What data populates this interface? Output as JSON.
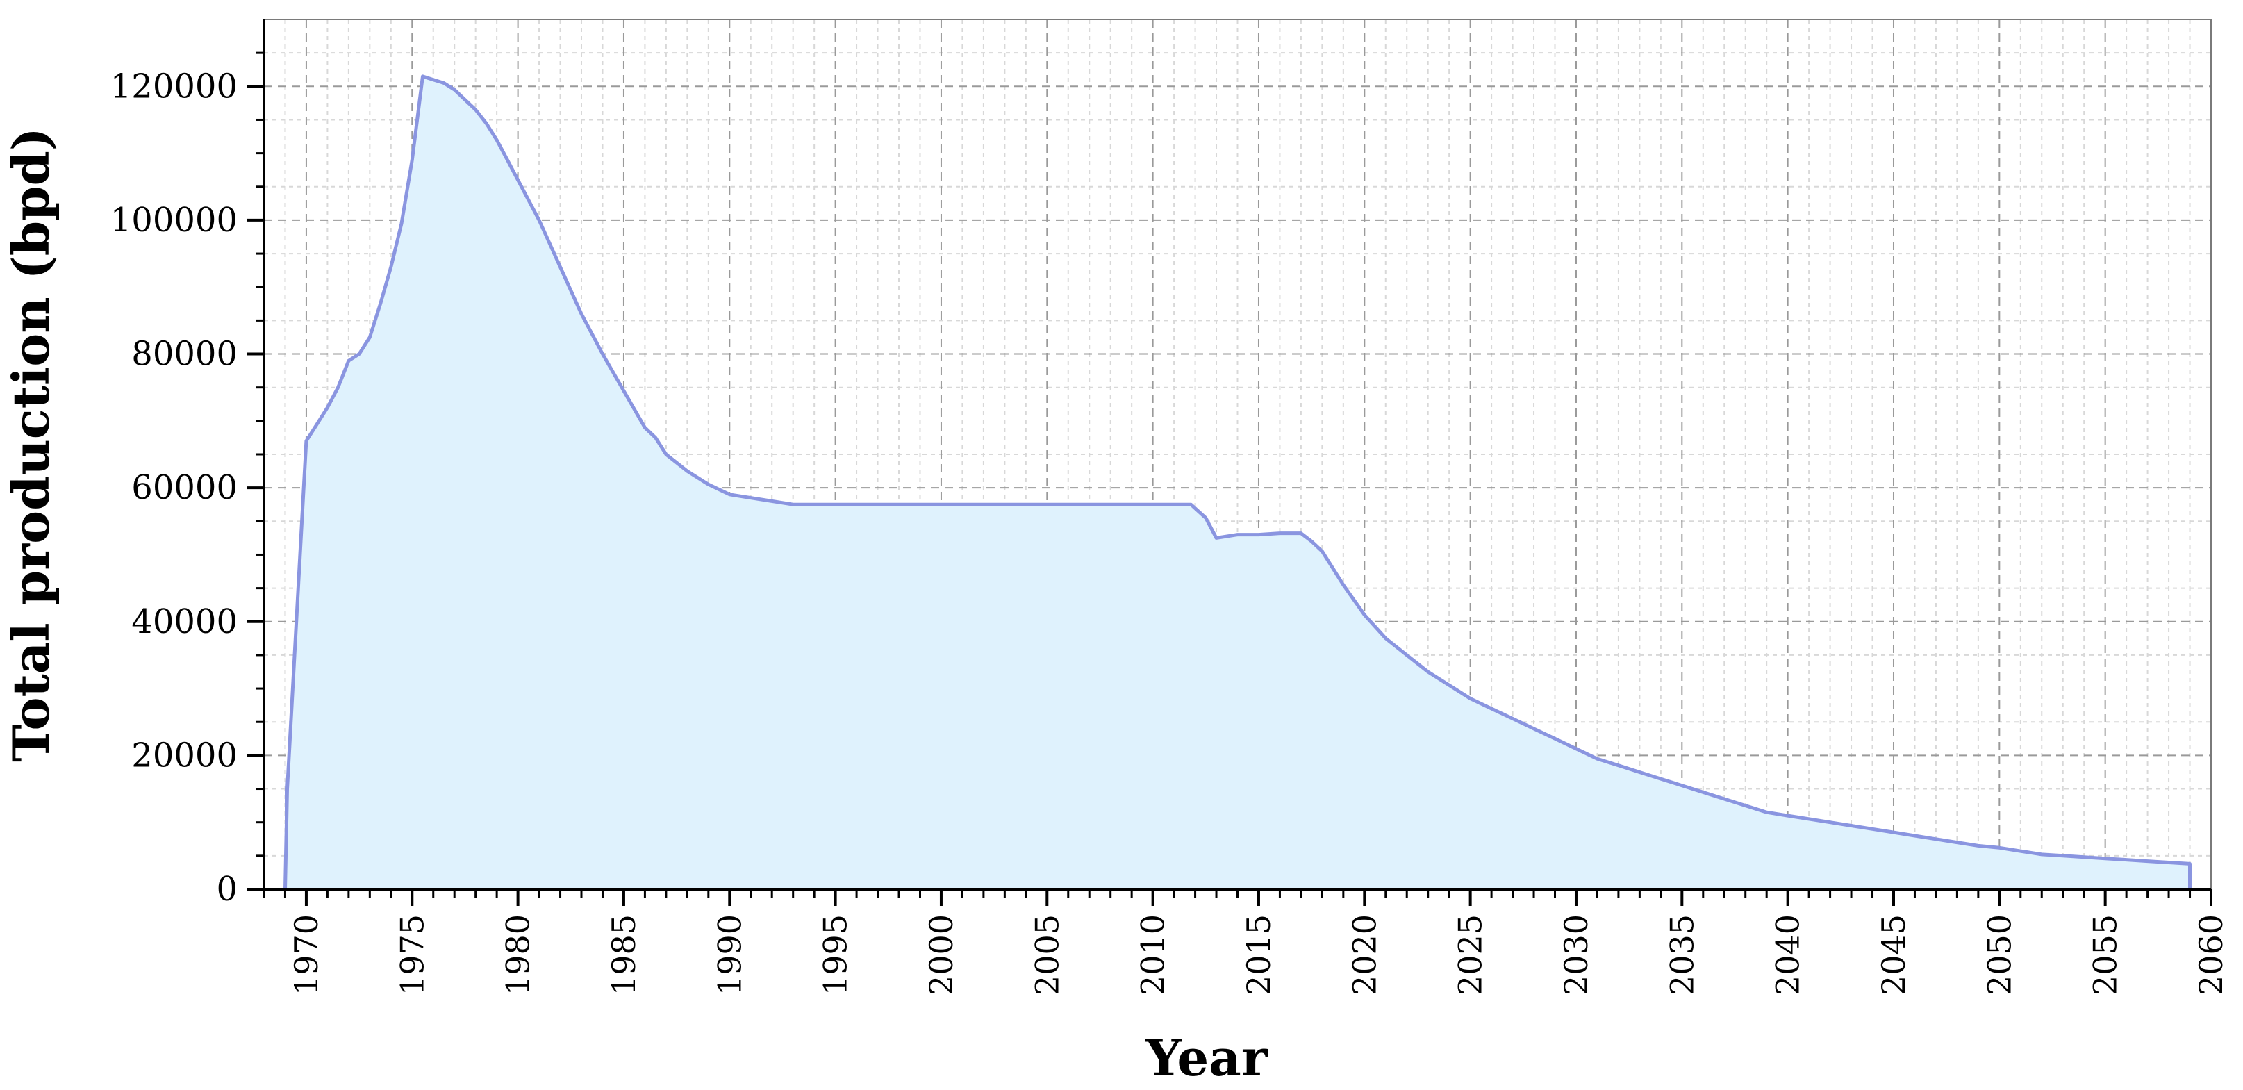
{
  "chart_data": {
    "type": "area",
    "title": "",
    "xlabel": "Year",
    "ylabel": "Total production (bpd)",
    "xlim": [
      1968,
      2060
    ],
    "ylim": [
      0,
      130000
    ],
    "x_ticks": [
      1970,
      1975,
      1980,
      1985,
      1990,
      1995,
      2000,
      2005,
      2010,
      2015,
      2020,
      2025,
      2030,
      2035,
      2040,
      2045,
      2050,
      2055,
      2060
    ],
    "y_ticks": [
      0,
      20000,
      40000,
      60000,
      80000,
      100000,
      120000
    ],
    "grid": true,
    "legend": "none",
    "colors": {
      "line": "#8a95e0",
      "fill": "#dff2fd",
      "major_grid": "#9a9a9a",
      "minor_grid": "#d8d8d8",
      "axis": "#000000"
    },
    "series": [
      {
        "x": [
          1969,
          1969.1,
          1970,
          1970.5,
          1971,
          1971.5,
          1972,
          1972.5,
          1973,
          1973.5,
          1974,
          1974.5,
          1975,
          1975.5,
          1976,
          1976.5,
          1977,
          1977.5,
          1978,
          1978.5,
          1979,
          1979.5,
          1980,
          1981,
          1982,
          1983,
          1984,
          1985,
          1986,
          1986.5,
          1987,
          1988,
          1989,
          1990,
          1991,
          1992,
          1993,
          1995,
          2000,
          2005,
          2010,
          2011,
          2011.8,
          2012.5,
          2013,
          2014,
          2015,
          2016,
          2017,
          2017.5,
          2018,
          2018.5,
          2019,
          2020,
          2021,
          2022,
          2023,
          2024,
          2025,
          2026,
          2027,
          2028,
          2029,
          2030,
          2031,
          2032,
          2033,
          2034,
          2035,
          2036,
          2037,
          2038,
          2039,
          2040,
          2041,
          2042,
          2043,
          2044,
          2045,
          2046,
          2047,
          2048,
          2049,
          2050,
          2051,
          2052,
          2053,
          2054,
          2055,
          2056,
          2057,
          2058,
          2059
        ],
        "y": [
          0,
          15000,
          67000,
          69500,
          72000,
          75000,
          79000,
          80000,
          82500,
          87500,
          93000,
          99500,
          109000,
          121500,
          121000,
          120500,
          119500,
          118000,
          116500,
          114500,
          112000,
          109000,
          106000,
          100000,
          93000,
          86000,
          80000,
          74500,
          69000,
          67500,
          65000,
          62500,
          60500,
          59000,
          58500,
          58000,
          57500,
          57500,
          57500,
          57500,
          57500,
          57500,
          57500,
          55500,
          52500,
          53000,
          53000,
          53200,
          53200,
          52000,
          50500,
          48000,
          45500,
          41000,
          37500,
          35000,
          32500,
          30500,
          28500,
          27000,
          25500,
          24000,
          22500,
          21000,
          19500,
          18500,
          17500,
          16500,
          15500,
          14500,
          13500,
          12500,
          11500,
          11000,
          10500,
          10000,
          9500,
          9000,
          8500,
          8000,
          7500,
          7000,
          6500,
          6200,
          5700,
          5200,
          5000,
          4800,
          4600,
          4400,
          4200,
          4000,
          3800
        ]
      }
    ]
  }
}
